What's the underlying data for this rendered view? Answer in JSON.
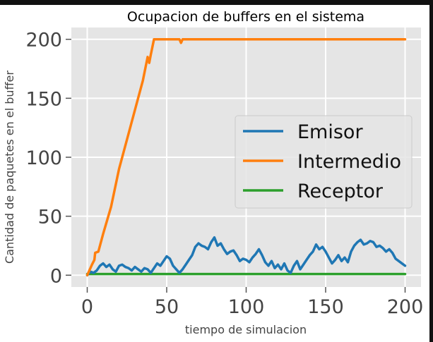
{
  "chart_data": {
    "type": "line",
    "title": "Ocupacion de buffers en el sistema",
    "xlabel": "tiempo de simulacion",
    "ylabel": "Cantidad de paquetes en el buffer",
    "xlim": [
      -10,
      210
    ],
    "ylim": [
      -10,
      210
    ],
    "xticks": [
      0,
      50,
      100,
      150,
      200
    ],
    "yticks": [
      0,
      50,
      100,
      150,
      200
    ],
    "grid": true,
    "legend_position": "center-right",
    "series": [
      {
        "name": "Emisor",
        "color": "#1f77b4",
        "x": [
          0,
          2,
          4,
          6,
          8,
          10,
          12,
          14,
          16,
          18,
          20,
          22,
          24,
          26,
          28,
          30,
          32,
          34,
          36,
          38,
          40,
          42,
          44,
          46,
          48,
          50,
          52,
          54,
          56,
          58,
          60,
          62,
          64,
          66,
          68,
          70,
          72,
          74,
          76,
          78,
          80,
          82,
          84,
          86,
          88,
          90,
          92,
          94,
          96,
          98,
          100,
          102,
          104,
          106,
          108,
          110,
          112,
          114,
          116,
          118,
          120,
          122,
          124,
          126,
          128,
          130,
          132,
          134,
          136,
          138,
          140,
          142,
          144,
          146,
          148,
          150,
          152,
          154,
          156,
          158,
          160,
          162,
          164,
          166,
          168,
          170,
          172,
          174,
          176,
          178,
          180,
          182,
          184,
          186,
          188,
          190,
          192,
          194,
          196,
          198,
          200
        ],
        "values": [
          0,
          3,
          2,
          4,
          8,
          10,
          7,
          9,
          5,
          3,
          8,
          9,
          7,
          6,
          4,
          7,
          5,
          3,
          6,
          5,
          2,
          6,
          10,
          8,
          12,
          16,
          14,
          8,
          5,
          2,
          5,
          9,
          13,
          17,
          24,
          27,
          25,
          24,
          22,
          28,
          32,
          25,
          27,
          22,
          18,
          20,
          21,
          17,
          12,
          14,
          13,
          11,
          15,
          18,
          22,
          17,
          11,
          8,
          12,
          6,
          9,
          5,
          10,
          4,
          2,
          8,
          12,
          5,
          9,
          13,
          17,
          20,
          26,
          22,
          24,
          20,
          15,
          10,
          13,
          17,
          12,
          15,
          11,
          20,
          25,
          28,
          30,
          26,
          27,
          29,
          28,
          24,
          25,
          23,
          20,
          22,
          19,
          14,
          12,
          10,
          8
        ]
      },
      {
        "name": "Intermedio",
        "color": "#ff7f0e",
        "x": [
          0,
          3,
          4.5,
          5,
          7,
          10,
          15,
          20,
          25,
          30,
          35,
          38,
          39,
          40,
          42,
          43,
          50,
          55,
          58,
          59,
          60,
          62,
          70,
          100,
          150,
          200
        ],
        "values": [
          0,
          9,
          13,
          19,
          20,
          35,
          58,
          90,
          115,
          140,
          165,
          185,
          180,
          187,
          200,
          200,
          200,
          200,
          200,
          197,
          200,
          200,
          200,
          200,
          200,
          200
        ]
      },
      {
        "name": "Receptor",
        "color": "#2ca02c",
        "x": [
          0,
          200
        ],
        "values": [
          1,
          1
        ]
      }
    ]
  }
}
